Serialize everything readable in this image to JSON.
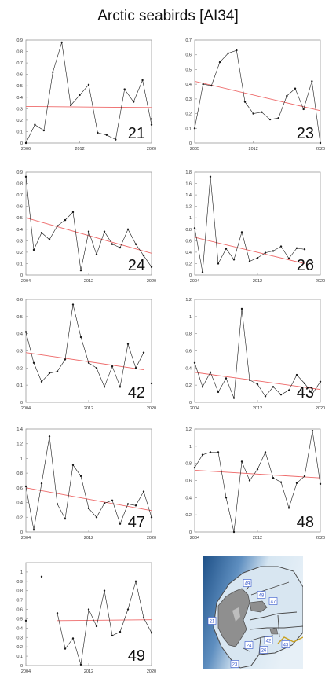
{
  "title": "Arctic seabirds [AI34]",
  "colors": {
    "series": "#1a1a1a",
    "trend": "#ee6a6a",
    "axis": "#9a9a9a",
    "map_sea_dark": "#1d4f86",
    "map_sea_light": "#d6e6f2",
    "map_land": "#9a9a9a",
    "map_label": "#3355cc"
  },
  "chart_data": [
    {
      "type": "line",
      "panel_label": "21",
      "xlim": [
        2006,
        2020
      ],
      "ylim": [
        0,
        0.9
      ],
      "yticks": [
        "0",
        "0.1",
        "0.2",
        "0.3",
        "0.4",
        "0.5",
        "0.6",
        "0.7",
        "0.8",
        "0.9"
      ],
      "xticks": [
        "2006",
        "2012",
        "2020"
      ],
      "x": [
        2006,
        2007,
        2008,
        2009,
        2010,
        2011,
        2012,
        2013,
        2014,
        2015,
        2016,
        2017,
        2018,
        2019,
        2020
      ],
      "y": [
        0.0,
        0.16,
        0.11,
        0.62,
        0.88,
        0.33,
        0.42,
        0.51,
        0.09,
        0.07,
        0.03,
        0.47,
        0.36,
        0.55,
        0.16
      ],
      "trend": [
        0.32,
        0.31
      ],
      "extra_points": [
        [
          2020,
          0.21
        ]
      ]
    },
    {
      "type": "line",
      "panel_label": "23",
      "xlim": [
        2005,
        2020
      ],
      "ylim": [
        0,
        0.7
      ],
      "yticks": [
        "0",
        "0.1",
        "0.2",
        "0.3",
        "0.4",
        "0.5",
        "0.6",
        "0.7"
      ],
      "xticks": [
        "2005",
        "2012",
        "2020"
      ],
      "x": [
        2005,
        2006,
        2007,
        2008,
        2009,
        2010,
        2011,
        2012,
        2013,
        2014,
        2015,
        2016,
        2017,
        2018,
        2019,
        2020
      ],
      "y": [
        0.1,
        0.4,
        0.39,
        0.55,
        0.61,
        0.63,
        0.28,
        0.2,
        0.21,
        0.16,
        0.17,
        0.32,
        0.37,
        0.23,
        0.42,
        0.0
      ],
      "trend": [
        0.42,
        0.22
      ]
    },
    {
      "type": "line",
      "panel_label": "24",
      "xlim": [
        2004,
        2020
      ],
      "ylim": [
        0,
        0.9
      ],
      "yticks": [
        "0",
        "0.1",
        "0.2",
        "0.3",
        "0.4",
        "0.5",
        "0.6",
        "0.7",
        "0.8",
        "0.9"
      ],
      "xticks": [
        "2004",
        "2012",
        "2020"
      ],
      "x": [
        2004,
        2005,
        2006,
        2007,
        2008,
        2009,
        2010,
        2011,
        2012,
        2013,
        2014,
        2015,
        2016,
        2017,
        2018,
        2019,
        2020
      ],
      "y": [
        0.86,
        0.22,
        0.37,
        0.31,
        0.43,
        0.48,
        0.55,
        0.04,
        0.38,
        0.18,
        0.38,
        0.27,
        0.24,
        0.4,
        0.27,
        0.17,
        0.07
      ],
      "trend": [
        0.5,
        0.19
      ]
    },
    {
      "type": "line",
      "panel_label": "26",
      "xlim": [
        2004,
        2020
      ],
      "ylim": [
        0,
        1.8
      ],
      "yticks": [
        "0",
        "0.2",
        "0.4",
        "0.6",
        "0.8",
        "1",
        "1.2",
        "1.4",
        "1.6",
        "1.8"
      ],
      "xticks": [
        "2004",
        "2012",
        "2020"
      ],
      "x": [
        2004,
        2005,
        2006,
        2007,
        2008,
        2009,
        2010,
        2011,
        2012,
        2013,
        2014,
        2015,
        2016,
        2017,
        2018
      ],
      "y": [
        0.82,
        0.05,
        1.72,
        0.2,
        0.46,
        0.27,
        0.75,
        0.24,
        0.3,
        0.39,
        0.42,
        0.5,
        0.29,
        0.47,
        0.45
      ],
      "trend": [
        0.66,
        0.2
      ],
      "extra_points": [
        [
          2019,
          0.22
        ]
      ]
    },
    {
      "type": "line",
      "panel_label": "42",
      "xlim": [
        2004,
        2020
      ],
      "ylim": [
        0,
        0.6
      ],
      "yticks": [
        "0",
        "0.1",
        "0.2",
        "0.3",
        "0.4",
        "0.5",
        "0.6"
      ],
      "xticks": [
        "2004",
        "2012",
        "2020"
      ],
      "x": [
        2004,
        2005,
        2006,
        2007,
        2008,
        2009,
        2010,
        2011,
        2012,
        2013,
        2014,
        2015,
        2016,
        2017,
        2018,
        2019
      ],
      "y": [
        0.41,
        0.23,
        0.12,
        0.17,
        0.18,
        0.25,
        0.57,
        0.38,
        0.23,
        0.2,
        0.09,
        0.21,
        0.09,
        0.34,
        0.2,
        0.29
      ],
      "trend": [
        0.29,
        0.19
      ],
      "extra_points": [
        [
          2020,
          0.11
        ]
      ]
    },
    {
      "type": "line",
      "panel_label": "43",
      "xlim": [
        2004,
        2020
      ],
      "ylim": [
        0,
        1.2
      ],
      "yticks": [
        "0",
        "0.2",
        "0.4",
        "0.6",
        "0.8",
        "1",
        "1.2"
      ],
      "xticks": [
        "2004",
        "2012",
        "2020"
      ],
      "x": [
        2004,
        2005,
        2006,
        2007,
        2008,
        2009,
        2010,
        2011,
        2012,
        2013,
        2014,
        2015,
        2016,
        2017,
        2018,
        2019,
        2020
      ],
      "y": [
        0.46,
        0.18,
        0.35,
        0.12,
        0.28,
        0.05,
        1.09,
        0.26,
        0.21,
        0.07,
        0.18,
        0.09,
        0.14,
        0.32,
        0.22,
        0.1,
        0.24
      ],
      "trend": [
        0.35,
        0.15
      ]
    },
    {
      "type": "line",
      "panel_label": "47",
      "xlim": [
        2004,
        2020
      ],
      "ylim": [
        0,
        1.4
      ],
      "yticks": [
        "0",
        "0.2",
        "0.4",
        "0.6",
        "0.8",
        "1",
        "1.2",
        "1.4"
      ],
      "xticks": [
        "2004",
        "2012",
        "2020"
      ],
      "x": [
        2004,
        2005,
        2006,
        2007,
        2008,
        2009,
        2010,
        2011,
        2012,
        2013,
        2014,
        2015,
        2016,
        2017,
        2018,
        2019,
        2020
      ],
      "y": [
        0.62,
        0.03,
        0.66,
        1.3,
        0.38,
        0.18,
        0.91,
        0.76,
        0.32,
        0.2,
        0.39,
        0.43,
        0.11,
        0.38,
        0.36,
        0.55,
        0.2
      ],
      "trend": [
        0.6,
        0.29
      ]
    },
    {
      "type": "line",
      "panel_label": "48",
      "xlim": [
        2004,
        2020
      ],
      "ylim": [
        0,
        1.2
      ],
      "yticks": [
        "0",
        "0.2",
        "0.4",
        "0.6",
        "0.8",
        "1",
        "1.2"
      ],
      "xticks": [
        "2004",
        "2012",
        "2020"
      ],
      "x": [
        2004,
        2005,
        2006,
        2007,
        2008,
        2009,
        2010,
        2011,
        2012,
        2013,
        2014,
        2015,
        2016,
        2017,
        2018,
        2019,
        2020
      ],
      "y": [
        0.75,
        0.9,
        0.93,
        0.93,
        0.4,
        0.0,
        0.82,
        0.6,
        0.73,
        0.93,
        0.63,
        0.58,
        0.28,
        0.57,
        0.65,
        1.18,
        0.56
      ],
      "trend": [
        0.72,
        0.63
      ]
    },
    {
      "type": "line",
      "panel_label": "49",
      "xlim": [
        2004,
        2020
      ],
      "ylim": [
        0,
        1.1
      ],
      "yticks": [
        "0",
        "0.1",
        "0.2",
        "0.3",
        "0.4",
        "0.5",
        "0.6",
        "0.7",
        "0.8",
        "0.9",
        "1"
      ],
      "xticks": [
        "2004",
        "2012",
        "2020"
      ],
      "x": [
        2008,
        2009,
        2010,
        2011,
        2012,
        2013,
        2014,
        2015,
        2016,
        2017,
        2018,
        2019,
        2020
      ],
      "y": [
        0.56,
        0.18,
        0.29,
        0.01,
        0.6,
        0.42,
        0.8,
        0.32,
        0.36,
        0.6,
        0.9,
        0.51,
        0.35
      ],
      "trend": [
        0.48,
        0.49
      ],
      "extra_points": [
        [
          2004,
          0.48
        ],
        [
          2006,
          0.95
        ]
      ]
    }
  ],
  "map": {
    "region_labels": [
      "49",
      "48",
      "47",
      "21",
      "42",
      "43",
      "26",
      "24",
      "23"
    ]
  }
}
